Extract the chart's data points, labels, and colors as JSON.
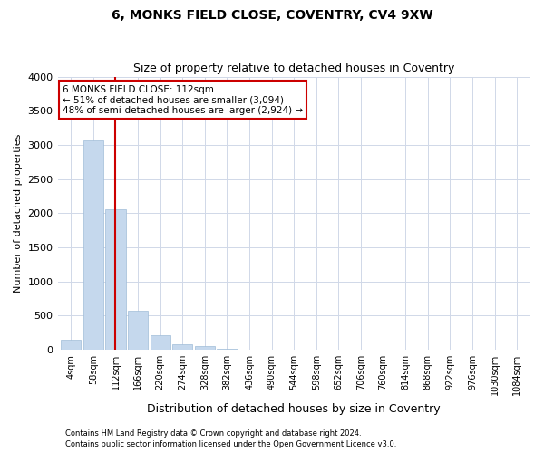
{
  "title": "6, MONKS FIELD CLOSE, COVENTRY, CV4 9XW",
  "subtitle": "Size of property relative to detached houses in Coventry",
  "xlabel": "Distribution of detached houses by size in Coventry",
  "ylabel": "Number of detached properties",
  "bins": [
    "4sqm",
    "58sqm",
    "112sqm",
    "166sqm",
    "220sqm",
    "274sqm",
    "328sqm",
    "382sqm",
    "436sqm",
    "490sqm",
    "544sqm",
    "598sqm",
    "652sqm",
    "706sqm",
    "760sqm",
    "814sqm",
    "868sqm",
    "922sqm",
    "976sqm",
    "1030sqm",
    "1084sqm"
  ],
  "values": [
    145,
    3060,
    2060,
    570,
    210,
    75,
    50,
    10,
    0,
    0,
    0,
    0,
    0,
    0,
    0,
    0,
    0,
    0,
    0,
    0,
    0
  ],
  "bar_color": "#c5d8ed",
  "bar_edgecolor": "#a0bcd8",
  "redline_bin_index": 2,
  "redline_color": "#cc0000",
  "ylim": [
    0,
    4000
  ],
  "yticks": [
    0,
    500,
    1000,
    1500,
    2000,
    2500,
    3000,
    3500,
    4000
  ],
  "annotation_line1": "6 MONKS FIELD CLOSE: 112sqm",
  "annotation_line2": "← 51% of detached houses are smaller (3,094)",
  "annotation_line3": "48% of semi-detached houses are larger (2,924) →",
  "annotation_box_color": "#ffffff",
  "annotation_border_color": "#cc0000",
  "footer_line1": "Contains HM Land Registry data © Crown copyright and database right 2024.",
  "footer_line2": "Contains public sector information licensed under the Open Government Licence v3.0.",
  "bg_color": "#ffffff",
  "grid_color": "#d0d8e8",
  "title_fontsize": 10,
  "subtitle_fontsize": 9
}
